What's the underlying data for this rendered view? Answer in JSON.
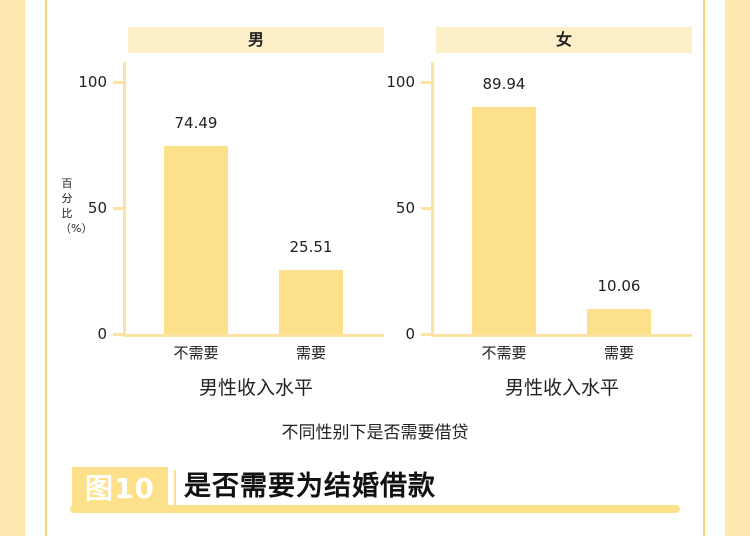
{
  "chart_data": {
    "type": "bar",
    "facet_strip_labels": [
      "男",
      "女"
    ],
    "categories": [
      "不需要",
      "需要"
    ],
    "panels": [
      {
        "strip": "男",
        "values": [
          74.49,
          25.51
        ],
        "value_labels": [
          "74.49",
          "25.51"
        ]
      },
      {
        "strip": "女",
        "values": [
          89.94,
          10.06
        ],
        "value_labels": [
          "89.94",
          "10.06"
        ]
      }
    ],
    "xlabel": "男性收入水平",
    "ylabel": "百分比（%）",
    "ylim": [
      0,
      100
    ],
    "yticks": [
      "0",
      "50",
      "100"
    ],
    "caption": "不同性别下是否需要借贷",
    "bar_color": "#fde08a",
    "strip_color": "#fdf0c8",
    "axis_color": "#fce3a1",
    "grid": false,
    "legend": "none"
  },
  "figure": {
    "badge": "图10",
    "title": "是否需要为结婚借款"
  },
  "colors": {
    "side_band": "#fde9b0",
    "accent": "#fde08a"
  }
}
